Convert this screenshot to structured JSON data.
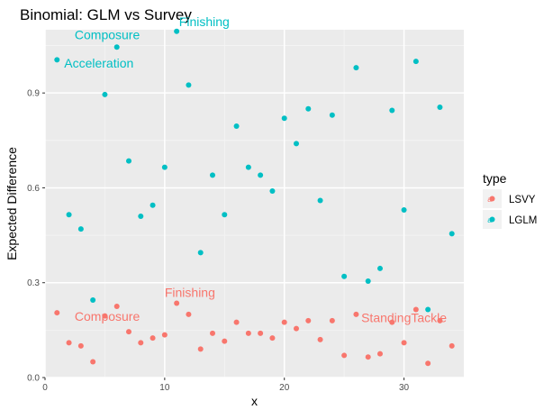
{
  "chart_data": {
    "type": "scatter",
    "title": "Binomial: GLM vs Survey",
    "xlabel": "x",
    "ylabel": "Expected Difference",
    "xlim": [
      0,
      35
    ],
    "ylim": [
      0,
      1.1
    ],
    "xticks": [
      0,
      10,
      20,
      30
    ],
    "yticks": [
      0.0,
      0.3,
      0.6,
      0.9
    ],
    "ytick_labels": [
      "0.0",
      "0.3",
      "0.6",
      "0.9"
    ],
    "grid": true,
    "legend": {
      "title": "type",
      "position": "right"
    },
    "series": [
      {
        "name": "LSVY",
        "color": "#F8766D",
        "points": [
          [
            1,
            0.205
          ],
          [
            2,
            0.11
          ],
          [
            3,
            0.1
          ],
          [
            4,
            0.05
          ],
          [
            5,
            0.195
          ],
          [
            6,
            0.225
          ],
          [
            7,
            0.145
          ],
          [
            8,
            0.11
          ],
          [
            9,
            0.125
          ],
          [
            10,
            0.135
          ],
          [
            11,
            0.235
          ],
          [
            12,
            0.2
          ],
          [
            13,
            0.09
          ],
          [
            14,
            0.14
          ],
          [
            15,
            0.115
          ],
          [
            16,
            0.175
          ],
          [
            17,
            0.14
          ],
          [
            18,
            0.14
          ],
          [
            19,
            0.125
          ],
          [
            20,
            0.175
          ],
          [
            21,
            0.155
          ],
          [
            22,
            0.18
          ],
          [
            23,
            0.12
          ],
          [
            24,
            0.18
          ],
          [
            25,
            0.07
          ],
          [
            26,
            0.2
          ],
          [
            27,
            0.065
          ],
          [
            28,
            0.075
          ],
          [
            29,
            0.175
          ],
          [
            30,
            0.11
          ],
          [
            31,
            0.215
          ],
          [
            32,
            0.045
          ],
          [
            33,
            0.18
          ],
          [
            34,
            0.1
          ]
        ]
      },
      {
        "name": "LGLM",
        "color": "#00BFC4",
        "points": [
          [
            1,
            1.005
          ],
          [
            2,
            0.515
          ],
          [
            3,
            0.47
          ],
          [
            4,
            0.245
          ],
          [
            5,
            0.895
          ],
          [
            6,
            1.045
          ],
          [
            7,
            0.685
          ],
          [
            8,
            0.51
          ],
          [
            9,
            0.545
          ],
          [
            10,
            0.665
          ],
          [
            11,
            1.095
          ],
          [
            12,
            0.925
          ],
          [
            13,
            0.395
          ],
          [
            14,
            0.64
          ],
          [
            15,
            0.515
          ],
          [
            16,
            0.795
          ],
          [
            17,
            0.665
          ],
          [
            18,
            0.64
          ],
          [
            19,
            0.59
          ],
          [
            20,
            0.82
          ],
          [
            21,
            0.74
          ],
          [
            22,
            0.85
          ],
          [
            23,
            0.56
          ],
          [
            24,
            0.83
          ],
          [
            25,
            0.32
          ],
          [
            26,
            0.98
          ],
          [
            27,
            0.305
          ],
          [
            28,
            0.345
          ],
          [
            29,
            0.845
          ],
          [
            30,
            0.53
          ],
          [
            31,
            1.0
          ],
          [
            32,
            0.215
          ],
          [
            33,
            0.855
          ],
          [
            34,
            0.455
          ]
        ]
      }
    ],
    "annotations": [
      {
        "text": "Finishing",
        "x": 11.2,
        "y": 1.112,
        "series": "LGLM",
        "anchor": "start"
      },
      {
        "text": "Composure",
        "x": 5.2,
        "y": 1.07,
        "series": "LGLM",
        "anchor": "middle"
      },
      {
        "text": "Acceleration",
        "x": 4.5,
        "y": 0.98,
        "series": "LGLM",
        "anchor": "middle"
      },
      {
        "text": "Finishing",
        "x": 10.0,
        "y": 0.255,
        "series": "LSVY",
        "anchor": "start"
      },
      {
        "text": "Composure",
        "x": 5.2,
        "y": 0.18,
        "series": "LSVY",
        "anchor": "middle"
      },
      {
        "text": "StandingTackle",
        "x": 30.0,
        "y": 0.175,
        "series": "LSVY",
        "anchor": "middle"
      }
    ]
  }
}
